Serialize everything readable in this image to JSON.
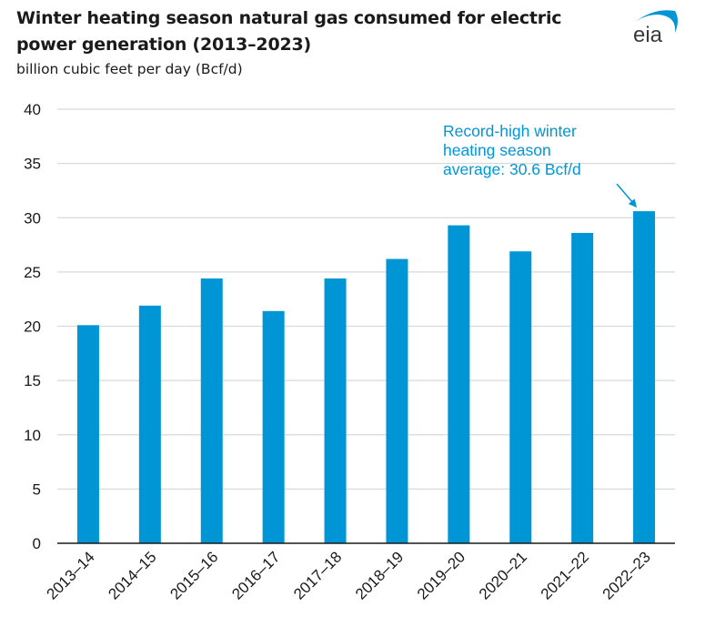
{
  "header": {
    "title": "Winter heating season natural gas consumed for electric power generation (2013–2023)",
    "subtitle": "billion cubic feet per day (Bcf/d)",
    "logo_text": "eia",
    "logo_icon": "eia-logo-arc-icon"
  },
  "colors": {
    "bar": "#0096d6",
    "annotation": "#0096d6",
    "grid": "#d9d9d9",
    "axis": "#1a1a1a",
    "logo_text": "#3a3a3a",
    "logo_arc": "#0096d6"
  },
  "chart_data": {
    "type": "bar",
    "title": "Winter heating season natural gas consumed for electric power generation (2013–2023)",
    "subtitle": "billion cubic feet per day (Bcf/d)",
    "xlabel": "",
    "ylabel": "billion cubic feet per day (Bcf/d)",
    "categories": [
      "2013–14",
      "2014–15",
      "2015–16",
      "2016–17",
      "2017–18",
      "2018–19",
      "2019–20",
      "2020–21",
      "2021–22",
      "2022–23"
    ],
    "values": [
      20.1,
      21.9,
      24.4,
      21.4,
      24.4,
      26.2,
      29.3,
      26.9,
      28.6,
      30.6
    ],
    "ylim": [
      0,
      40
    ],
    "yticks": [
      0,
      5,
      10,
      15,
      20,
      25,
      30,
      35,
      40
    ],
    "ytick_labels": [
      "0",
      "5",
      "10",
      "15",
      "20",
      "25",
      "30",
      "35",
      "40"
    ],
    "grid": true,
    "legend": "none",
    "annotations": [
      {
        "text_lines": [
          "Record-high winter",
          "heating season",
          "average: 30.6 Bcf/d"
        ],
        "target_category": "2022–23",
        "target_value": 30.6,
        "arrow": true
      }
    ]
  }
}
